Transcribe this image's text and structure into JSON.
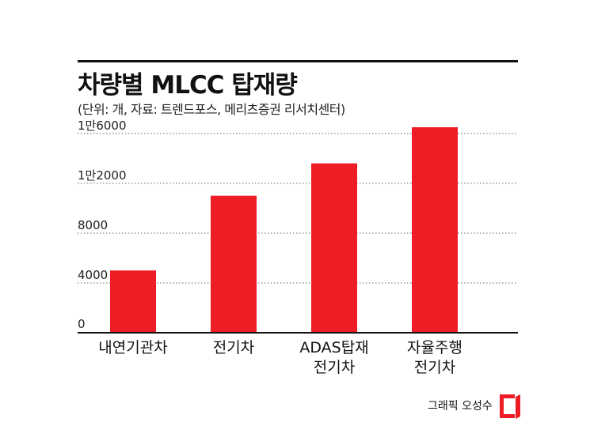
{
  "header": {
    "title": "차량별 MLCC 탑재량",
    "subtitle": "(단위: 개, 자료: 트렌드포스, 메리츠증권 리서치센터)"
  },
  "chart_data": {
    "type": "bar",
    "categories": [
      [
        "내연기관차"
      ],
      [
        "전기차"
      ],
      [
        "ADAS탑재",
        "전기차"
      ],
      [
        "자율주행",
        "전기차"
      ]
    ],
    "values": [
      5000,
      11000,
      13600,
      16500
    ],
    "ylim": [
      0,
      16500
    ],
    "yticks": [
      {
        "value": 0,
        "label": "0"
      },
      {
        "value": 4000,
        "label": "4000"
      },
      {
        "value": 8000,
        "label": "8000"
      },
      {
        "value": 12000,
        "label": "1만2000"
      },
      {
        "value": 16000,
        "label": "1만6000"
      }
    ],
    "grid": true,
    "bar_color": "#ee1c25"
  },
  "footer": {
    "credit": "그래픽 오성수",
    "logo_color": "#ee1c25",
    "logo_icon": "red-page-logo-icon"
  }
}
